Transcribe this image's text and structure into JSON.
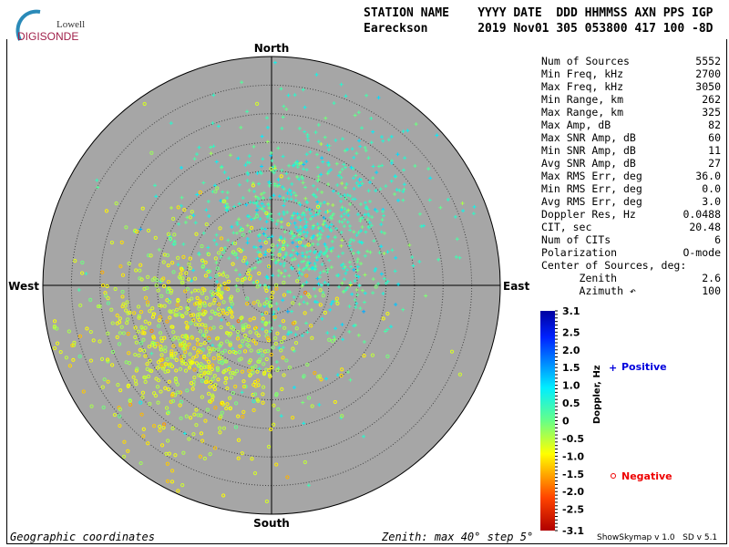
{
  "logo": {
    "line1": "Lowell",
    "line2": "DIGISONDE"
  },
  "header": {
    "labels": "STATION NAME    YYYY DATE  DDD HHMMSS AXN PPS IGP",
    "values": "Eareckson       2019 Nov01 305 053800 417 100 -8D"
  },
  "stats": [
    {
      "label": "Num of Sources",
      "value": "5552"
    },
    {
      "label": "Min Freq, kHz",
      "value": "2700"
    },
    {
      "label": "Max Freq, kHz",
      "value": "3050"
    },
    {
      "label": "Min Range, km",
      "value": "262"
    },
    {
      "label": "Max Range, km",
      "value": "325"
    },
    {
      "label": "Max Amp, dB",
      "value": "82"
    },
    {
      "label": "Max SNR Amp, dB",
      "value": "60"
    },
    {
      "label": "Min SNR Amp, dB",
      "value": "11"
    },
    {
      "label": "Avg SNR Amp, dB",
      "value": "27"
    },
    {
      "label": "Max RMS Err, deg",
      "value": "36.0"
    },
    {
      "label": "Min RMS Err, deg",
      "value": "0.0"
    },
    {
      "label": "Avg RMS Err, deg",
      "value": "3.0"
    },
    {
      "label": "Doppler Res, Hz",
      "value": "0.0488"
    },
    {
      "label": "CIT, sec",
      "value": "20.48"
    },
    {
      "label": "Num of CITs",
      "value": "6"
    },
    {
      "label": "Polarization",
      "value": "O-mode"
    },
    {
      "label": "Center of Sources, deg:",
      "value": ""
    },
    {
      "label": "      Zenith",
      "value": "2.6"
    },
    {
      "label": "      Azimuth ↶",
      "value": "100"
    }
  ],
  "footer": {
    "left": "Geographic coordinates",
    "center": "Zenith: max 40°  step 5°",
    "version": "ShowSkymap v 1.0   SD v 5.1"
  },
  "chart_data": {
    "type": "scatter",
    "projection": "polar skymap",
    "directions": {
      "north": "North",
      "south": "South",
      "east": "East",
      "west": "West"
    },
    "zenith_max_deg": 40,
    "zenith_step_deg": 5,
    "colorbar": {
      "label": "Doppler, Hz",
      "min": -3.1,
      "max": 3.1,
      "ticks": [
        "3.1",
        "2.5",
        "2.0",
        "1.5",
        "1.0",
        "0.5",
        "0",
        "-0.5",
        "-1.0",
        "-1.5",
        "-2.0",
        "-2.5",
        "-3.1"
      ]
    },
    "legend": {
      "positive": "Positive",
      "negative": "Negative",
      "positive_symbol": "+",
      "negative_symbol": "o"
    },
    "clusters": [
      {
        "sign": "positive",
        "center_azimuth_deg": 30,
        "center_zenith_deg": 12,
        "spread_deg": 9,
        "doppler_mean": 0.4
      },
      {
        "sign": "negative",
        "center_azimuth_deg": 235,
        "center_zenith_deg": 16,
        "spread_deg": 9,
        "doppler_mean": -0.7
      }
    ],
    "colors": {
      "plot_bg": "#a6a6a6",
      "positive_label": "#0000dd",
      "negative_label": "#ee0000"
    }
  }
}
